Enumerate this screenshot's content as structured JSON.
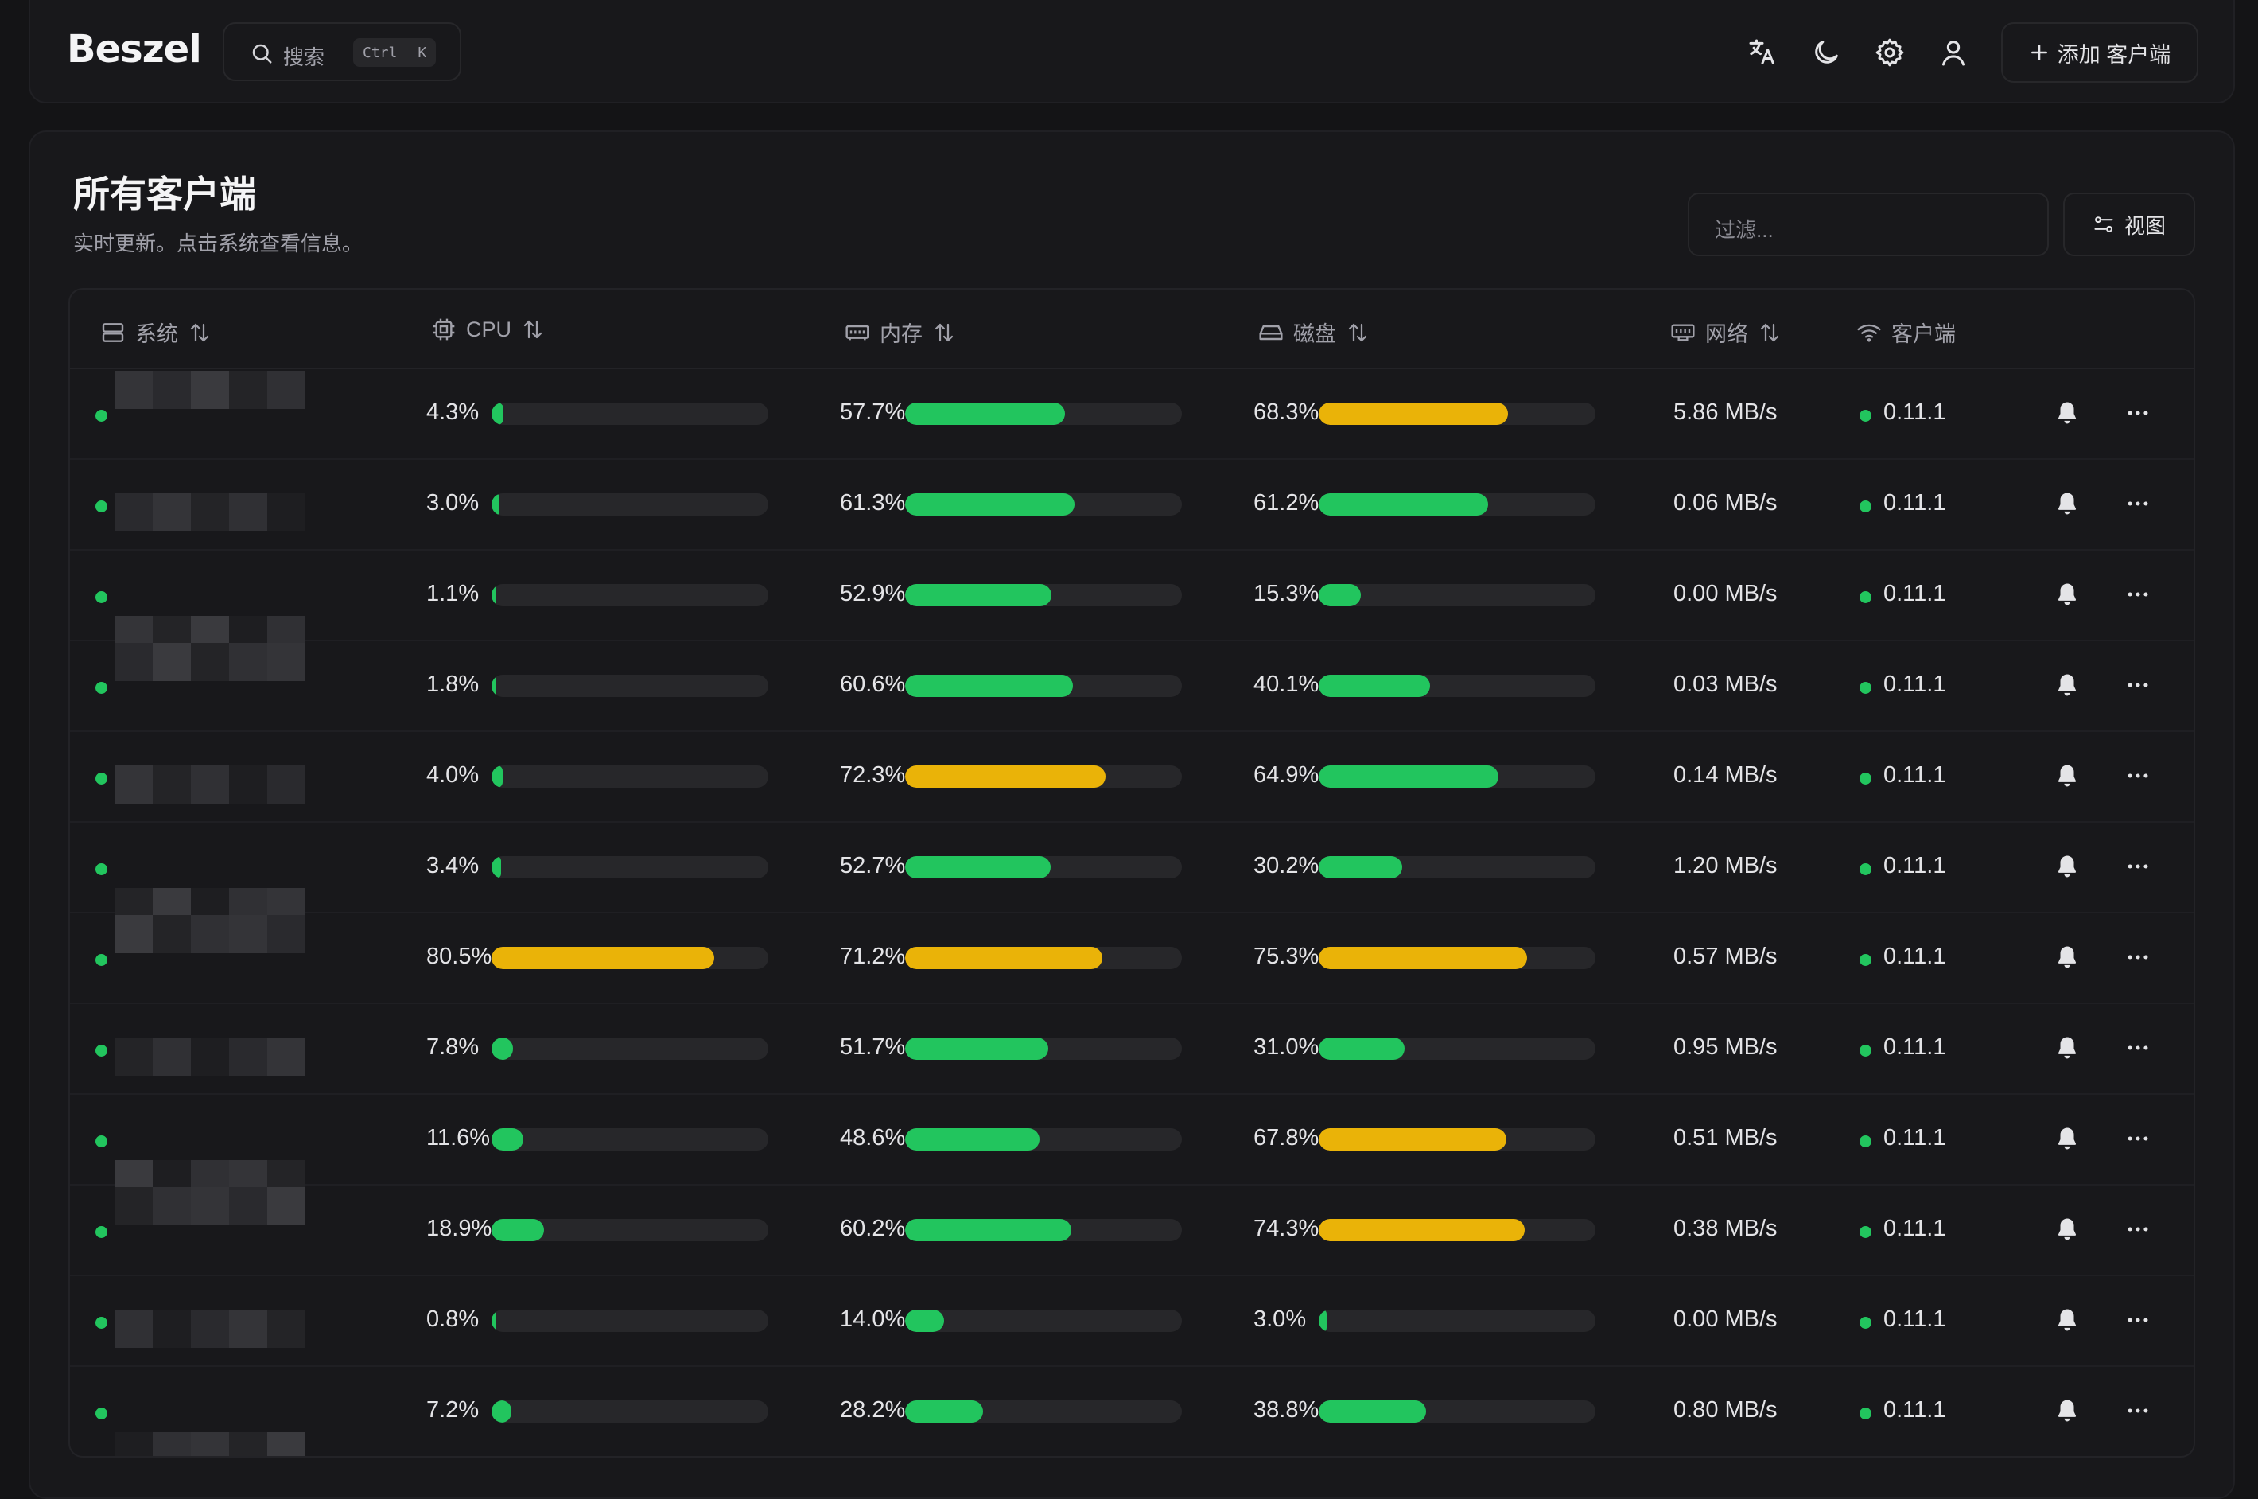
{
  "app": {
    "logo": "Beszel"
  },
  "search": {
    "placeholder": "搜索",
    "kbd_ctrl": "Ctrl",
    "kbd_key": "K"
  },
  "header": {
    "add_button": "添加 客户端",
    "icons": [
      "translate-icon",
      "moon-icon",
      "gear-icon",
      "user-icon"
    ]
  },
  "page": {
    "title": "所有客户端",
    "subtitle": "实时更新。点击系统查看信息。",
    "filter_placeholder": "过滤...",
    "view_button": "视图"
  },
  "table": {
    "columns": {
      "system": "系统",
      "cpu": "CPU",
      "memory": "内存",
      "disk": "磁盘",
      "net": "网络",
      "agent": "客户端"
    },
    "rows": [
      {
        "status": "up",
        "cpu": "4.3%",
        "mem": "57.7%",
        "disk": "68.3%",
        "net": "5.86 MB/s",
        "agent": "0.11.1"
      },
      {
        "status": "up",
        "cpu": "3.0%",
        "mem": "61.3%",
        "disk": "61.2%",
        "net": "0.06 MB/s",
        "agent": "0.11.1"
      },
      {
        "status": "up",
        "cpu": "1.1%",
        "mem": "52.9%",
        "disk": "15.3%",
        "net": "0.00 MB/s",
        "agent": "0.11.1"
      },
      {
        "status": "up",
        "cpu": "1.8%",
        "mem": "60.6%",
        "disk": "40.1%",
        "net": "0.03 MB/s",
        "agent": "0.11.1"
      },
      {
        "status": "up",
        "cpu": "4.0%",
        "mem": "72.3%",
        "disk": "64.9%",
        "net": "0.14 MB/s",
        "agent": "0.11.1"
      },
      {
        "status": "up",
        "cpu": "3.4%",
        "mem": "52.7%",
        "disk": "30.2%",
        "net": "1.20 MB/s",
        "agent": "0.11.1"
      },
      {
        "status": "up",
        "cpu": "80.5%",
        "mem": "71.2%",
        "disk": "75.3%",
        "net": "0.57 MB/s",
        "agent": "0.11.1"
      },
      {
        "status": "up",
        "cpu": "7.8%",
        "mem": "51.7%",
        "disk": "31.0%",
        "net": "0.95 MB/s",
        "agent": "0.11.1"
      },
      {
        "status": "up",
        "cpu": "11.6%",
        "mem": "48.6%",
        "disk": "67.8%",
        "net": "0.51 MB/s",
        "agent": "0.11.1"
      },
      {
        "status": "up",
        "cpu": "18.9%",
        "mem": "60.2%",
        "disk": "74.3%",
        "net": "0.38 MB/s",
        "agent": "0.11.1"
      },
      {
        "status": "up",
        "cpu": "0.8%",
        "mem": "14.0%",
        "disk": "3.0%",
        "net": "0.00 MB/s",
        "agent": "0.11.1"
      },
      {
        "status": "up",
        "cpu": "7.2%",
        "mem": "28.2%",
        "disk": "38.8%",
        "net": "0.80 MB/s",
        "agent": "0.11.1"
      }
    ]
  },
  "colors": {
    "ok": "#22c55e",
    "warn": "#eab308",
    "track": "#27272a",
    "status_up": "#22c55e"
  }
}
